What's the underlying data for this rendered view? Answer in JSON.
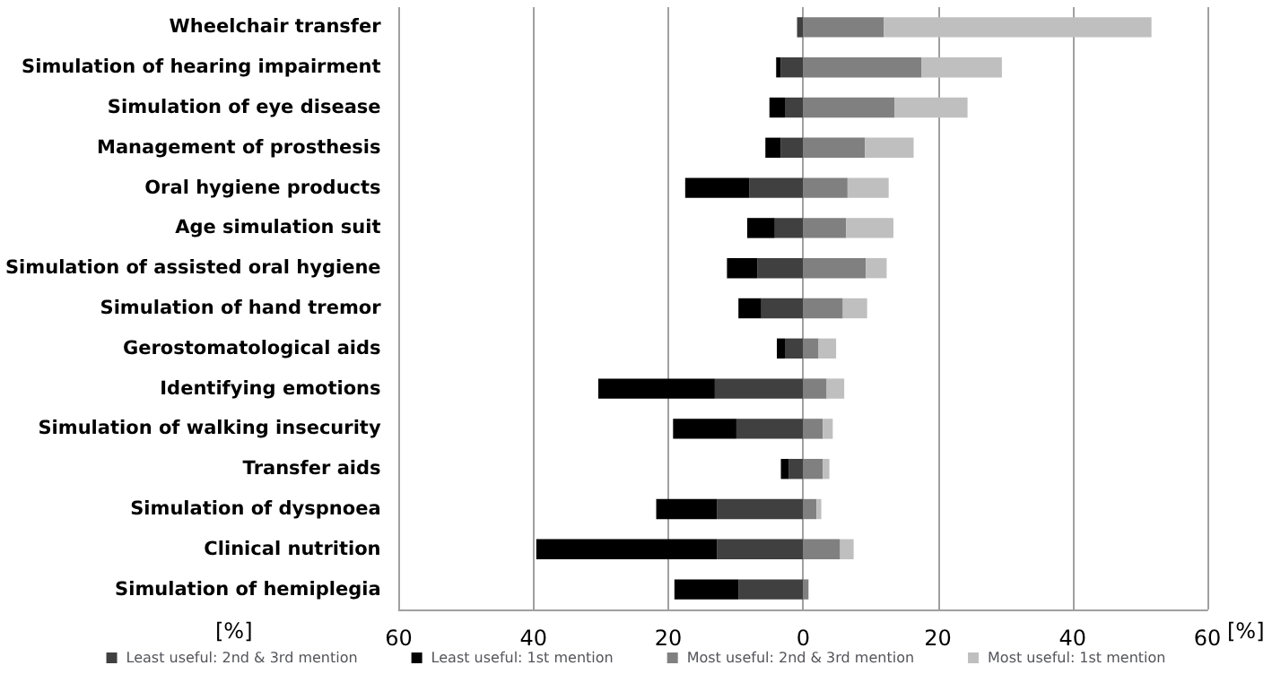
{
  "chart_data": {
    "type": "bar",
    "orientation": "horizontal",
    "stacked": true,
    "xlabel": "[%]",
    "categories": [
      "Wheelchair transfer",
      "Simulation of hearing impairment",
      "Simulation of eye disease",
      "Management of prosthesis",
      "Oral hygiene products",
      "Age simulation suit",
      "Simulation of assisted oral hygiene",
      "Simulation of hand tremor",
      "Gerostomatological aids",
      "Identifying emotions",
      "Simulation of walking insecurity",
      "Transfer aids",
      "Simulation of dyspnoea",
      "Clinical nutrition",
      "Simulation of hemiplegia"
    ],
    "series": [
      {
        "name": "Least useful: 2nd & 3rd mention",
        "color": "#404040",
        "values": [
          -0.9,
          -3.3,
          -2.7,
          -3.3,
          -8.0,
          -4.2,
          -6.8,
          -6.2,
          -2.7,
          -13.1,
          -9.9,
          -2.1,
          -12.8,
          -12.8,
          -9.6
        ]
      },
      {
        "name": "Least useful: 1st mention",
        "color": "#000000",
        "values": [
          0,
          -0.7,
          -2.3,
          -2.3,
          -9.5,
          -4.1,
          -4.5,
          -3.4,
          -1.2,
          -17.3,
          -9.4,
          -1.2,
          -9.0,
          -26.8,
          -9.5
        ]
      },
      {
        "name": "Most useful: 2nd & 3rd mention",
        "color": "#808080",
        "values": [
          12.0,
          17.6,
          13.6,
          9.2,
          6.6,
          6.4,
          9.3,
          5.9,
          2.3,
          3.5,
          2.9,
          2.9,
          2.0,
          5.5,
          0.8
        ]
      },
      {
        "name": "Most useful: 1st mention",
        "color": "#bfbfbf",
        "values": [
          39.7,
          11.9,
          10.8,
          7.2,
          6.1,
          7.0,
          3.1,
          3.6,
          2.6,
          2.6,
          1.5,
          1.0,
          0.7,
          2.0,
          0
        ]
      }
    ],
    "xlim": [
      -60,
      60
    ],
    "xticks": [
      {
        "value": -60,
        "label": "60"
      },
      {
        "value": -40,
        "label": "40"
      },
      {
        "value": -20,
        "label": "20"
      },
      0,
      20,
      40,
      60
    ],
    "grid": "x",
    "legend": "bottom"
  }
}
